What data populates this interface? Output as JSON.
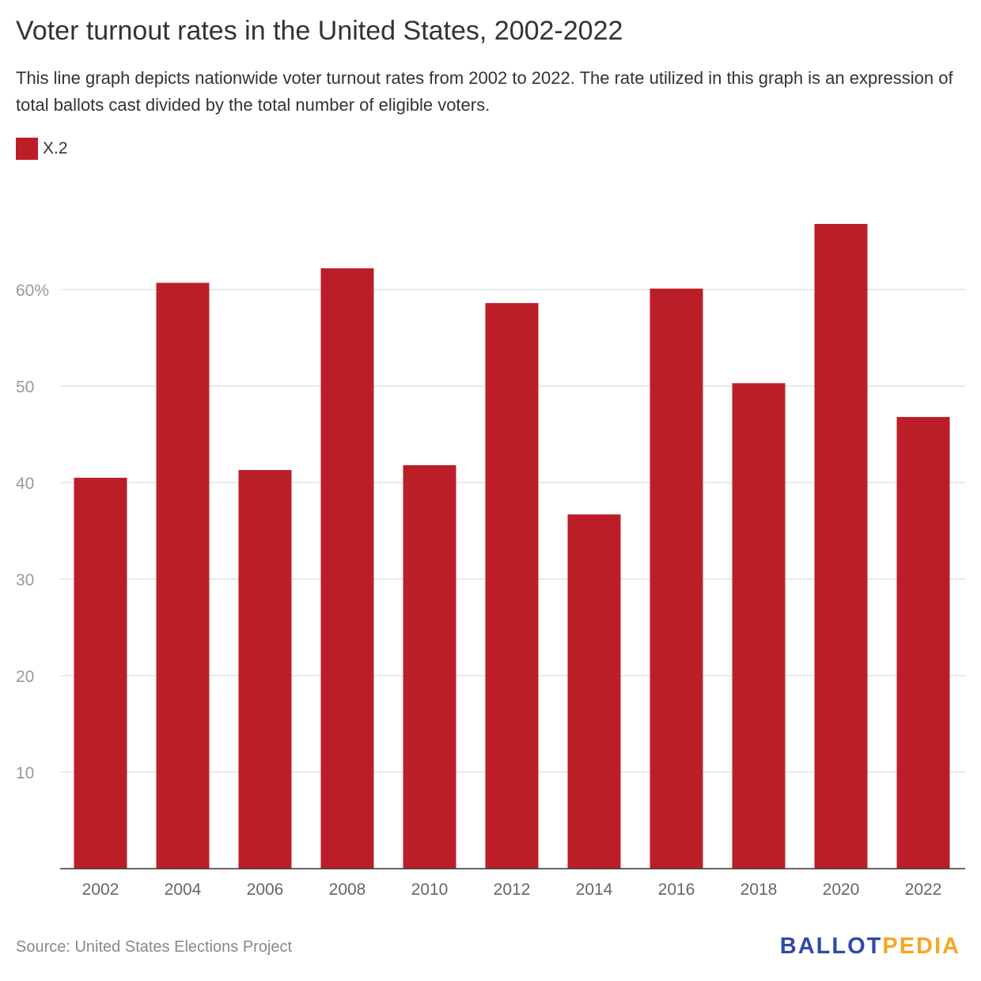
{
  "title": "Voter turnout rates in the United States, 2002-2022",
  "subtitle": "This line graph depicts nationwide voter turnout rates from 2002 to 2022. The rate utilized in this graph is an expression of total ballots cast divided by the total number of eligible voters.",
  "source": "Source: United States Elections Project",
  "logo": {
    "part1": "BALLOT",
    "part2": "PEDIA",
    "color1": "#2f4aa8",
    "color2": "#f5a623"
  },
  "chart_data": {
    "type": "bar",
    "title": "Voter turnout rates in the United States, 2002-2022",
    "categories": [
      "2002",
      "2004",
      "2006",
      "2008",
      "2010",
      "2012",
      "2014",
      "2016",
      "2018",
      "2020",
      "2022"
    ],
    "series": [
      {
        "name": "X.2",
        "color": "#bc1e28",
        "values": [
          40.5,
          60.7,
          41.3,
          62.2,
          41.8,
          58.6,
          36.7,
          60.1,
          50.3,
          66.8,
          46.8
        ]
      }
    ],
    "yticks": [
      10,
      20,
      30,
      40,
      50,
      60
    ],
    "ytick_labels": [
      "10",
      "20",
      "30",
      "40",
      "50",
      "60%"
    ],
    "ylim": [
      0,
      70
    ],
    "grid": true,
    "legend": "top-left"
  }
}
